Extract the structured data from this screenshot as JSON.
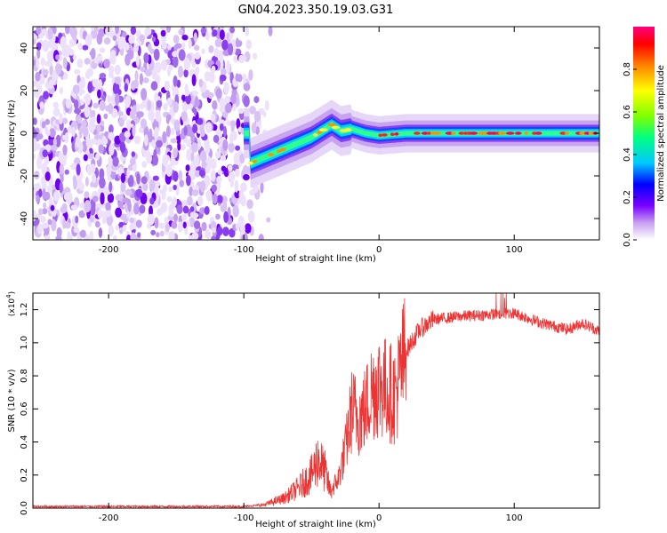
{
  "figure": {
    "title": "GN04.2023.350.19.03.G31"
  },
  "chart_data": [
    {
      "type": "heatmap",
      "title": "GN04.2023.350.19.03.G31",
      "xlabel": "Height of straight line (km)",
      "ylabel": "Frequency (Hz)",
      "xlim": [
        -256,
        163
      ],
      "ylim": [
        -50,
        50
      ],
      "xticks": [
        -200,
        -100,
        0,
        100
      ],
      "yticks": [
        -40,
        -20,
        0,
        20,
        40
      ],
      "tick_labels_x": [
        "-200",
        "-100",
        "0",
        "100"
      ],
      "tick_labels_y": [
        "-40",
        "-20",
        "0",
        "20",
        "40"
      ],
      "colorbar": {
        "label": "Normalized spectral amplitude",
        "range": [
          0,
          1
        ],
        "ticks": [
          "0.0",
          "0.2",
          "0.4",
          "0.6",
          "0.8"
        ],
        "colors": [
          "#ffffff",
          "#c8a0f0",
          "#7800ff",
          "#0000ff",
          "#00c8ff",
          "#00ff80",
          "#80ff00",
          "#ffff00",
          "#ff8000",
          "#ff0000",
          "#ff0080"
        ]
      },
      "noise_region_x": [
        -256,
        -90
      ],
      "signal_track": [
        {
          "x": -95,
          "y": -14
        },
        {
          "x": -80,
          "y": -10
        },
        {
          "x": -65,
          "y": -6
        },
        {
          "x": -50,
          "y": -2
        },
        {
          "x": -40,
          "y": 2
        },
        {
          "x": -35,
          "y": 4
        },
        {
          "x": -28,
          "y": 1
        },
        {
          "x": -20,
          "y": 2
        },
        {
          "x": -10,
          "y": 0
        },
        {
          "x": 0,
          "y": -1
        },
        {
          "x": 20,
          "y": 0
        },
        {
          "x": 60,
          "y": 0
        },
        {
          "x": 100,
          "y": 0
        },
        {
          "x": 163,
          "y": 0
        }
      ]
    },
    {
      "type": "line",
      "xlabel": "Height of straight line (km)",
      "ylabel": "SNR (10 * v/v)",
      "yscale_label": "(x10",
      "yscale_exp": "4",
      "xlim": [
        -256,
        163
      ],
      "ylim": [
        0,
        1.3
      ],
      "xticks": [
        -200,
        -100,
        0,
        100
      ],
      "yticks": [
        0.0,
        0.2,
        0.4,
        0.6,
        0.8,
        1.0,
        1.2
      ],
      "tick_labels_x": [
        "-200",
        "-100",
        "0",
        "100"
      ],
      "tick_labels_y": [
        "0.0",
        "0.2",
        "0.4",
        "0.6",
        "0.8",
        "1.0",
        "1.2"
      ],
      "color": "#ee3333",
      "envelope": [
        {
          "x": -256,
          "y": 0.01
        },
        {
          "x": -100,
          "y": 0.01
        },
        {
          "x": -85,
          "y": 0.02
        },
        {
          "x": -70,
          "y": 0.06
        },
        {
          "x": -60,
          "y": 0.12
        },
        {
          "x": -50,
          "y": 0.2
        },
        {
          "x": -45,
          "y": 0.3
        },
        {
          "x": -40,
          "y": 0.22
        },
        {
          "x": -36,
          "y": 0.1
        },
        {
          "x": -30,
          "y": 0.18
        },
        {
          "x": -25,
          "y": 0.35
        },
        {
          "x": -20,
          "y": 0.6
        },
        {
          "x": -15,
          "y": 0.55
        },
        {
          "x": -10,
          "y": 0.6
        },
        {
          "x": -5,
          "y": 0.72
        },
        {
          "x": 0,
          "y": 0.75
        },
        {
          "x": 5,
          "y": 0.72
        },
        {
          "x": 12,
          "y": 0.68
        },
        {
          "x": 20,
          "y": 0.95
        },
        {
          "x": 30,
          "y": 1.08
        },
        {
          "x": 40,
          "y": 1.14
        },
        {
          "x": 60,
          "y": 1.16
        },
        {
          "x": 80,
          "y": 1.17
        },
        {
          "x": 100,
          "y": 1.18
        },
        {
          "x": 120,
          "y": 1.12
        },
        {
          "x": 140,
          "y": 1.08
        },
        {
          "x": 150,
          "y": 1.12
        },
        {
          "x": 163,
          "y": 1.07
        }
      ]
    }
  ]
}
